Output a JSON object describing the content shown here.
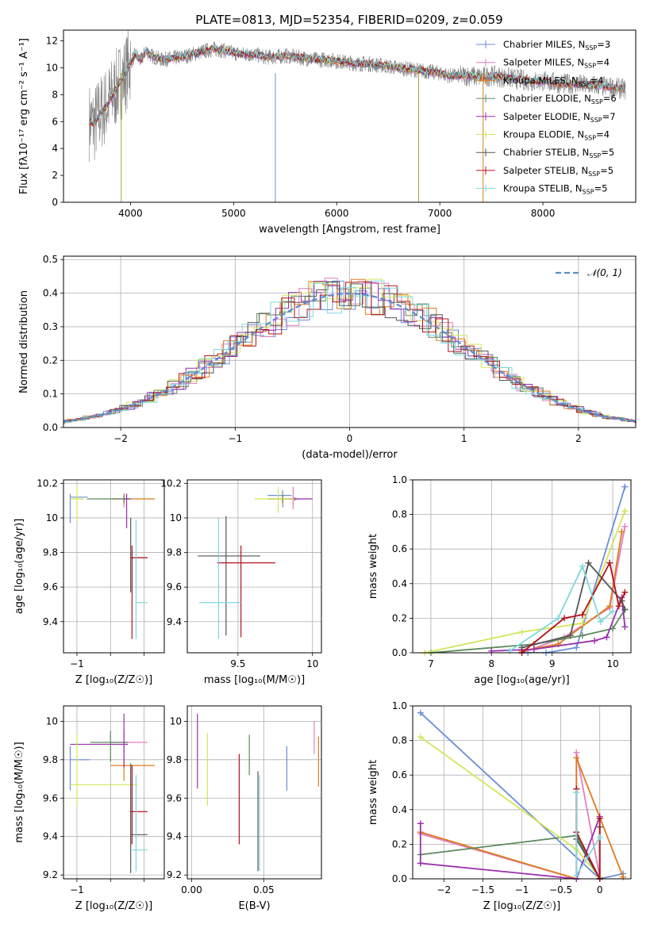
{
  "colors": [
    "#6a8fd8",
    "#e17fc0",
    "#e07b1a",
    "#5d8a5e",
    "#9b2fae",
    "#d4e55a",
    "#555555",
    "#b5121b",
    "#7fd8de"
  ],
  "chart_data": [
    {
      "id": "spectrum",
      "type": "line",
      "title": "PLATE=0813, MJD=52354, FIBERID=0209, z=0.059",
      "xlabel": "wavelength [Angstrom, rest frame]",
      "ylabel": "Flux [fλ10⁻¹⁷ erg cm⁻² s⁻¹ A⁻¹]",
      "xlim": [
        3350,
        8900
      ],
      "ylim": [
        0,
        12.8
      ],
      "xticks": [
        4000,
        5000,
        6000,
        7000,
        8000
      ],
      "yticks": [
        0,
        2,
        4,
        6,
        8,
        10,
        12
      ],
      "data_color": "#808080",
      "spectrum": {
        "x": [
          3600,
          3650,
          3700,
          3750,
          3800,
          3850,
          3900,
          3950,
          4000,
          4050,
          4100,
          4150,
          4200,
          4300,
          4400,
          4500,
          4600,
          4700,
          4800,
          4900,
          5000,
          5100,
          5200,
          5300,
          5400,
          5500,
          5600,
          5700,
          5800,
          5900,
          6000,
          6100,
          6200,
          6300,
          6400,
          6500,
          6600,
          6700,
          6800,
          6900,
          7000,
          7100,
          7200,
          7300,
          7400,
          7500,
          7600,
          7700,
          7800,
          7900,
          8000,
          8100,
          8200,
          8300,
          8400,
          8500,
          8600,
          8700,
          8800
        ],
        "y": [
          6.0,
          5.8,
          6.6,
          7.0,
          7.6,
          8.3,
          9.0,
          9.5,
          10.4,
          11.0,
          10.5,
          11.3,
          10.9,
          10.6,
          10.7,
          10.8,
          11.0,
          11.2,
          11.4,
          11.3,
          11.1,
          11.0,
          11.0,
          10.8,
          10.8,
          10.9,
          10.8,
          10.7,
          10.6,
          10.6,
          10.5,
          10.4,
          10.3,
          10.3,
          10.2,
          10.1,
          10.0,
          9.9,
          9.8,
          9.7,
          9.6,
          9.4,
          9.4,
          9.4,
          9.3,
          9.4,
          9.3,
          9.2,
          9.1,
          9.0,
          9.0,
          8.9,
          8.8,
          8.8,
          8.7,
          8.7,
          8.6,
          8.5,
          8.4
        ]
      },
      "legend": [
        {
          "imf": "Chabrier",
          "lib": "MILES",
          "n": "3"
        },
        {
          "imf": "Salpeter",
          "lib": "MILES",
          "n": "4"
        },
        {
          "imf": "Kroupa",
          "lib": "MILES",
          "n": "4"
        },
        {
          "imf": "Chabrier",
          "lib": "ELODIE",
          "n": "6"
        },
        {
          "imf": "Salpeter",
          "lib": "ELODIE",
          "n": "7"
        },
        {
          "imf": "Kroupa",
          "lib": "ELODIE",
          "n": "4"
        },
        {
          "imf": "Chabrier",
          "lib": "STELIB",
          "n": "5"
        },
        {
          "imf": "Salpeter",
          "lib": "STELIB",
          "n": "5"
        },
        {
          "imf": "Kroupa",
          "lib": "STELIB",
          "n": "5"
        }
      ],
      "legend_sub": "SSP",
      "legend_placement": "top-right"
    },
    {
      "id": "residuals",
      "type": "histogram",
      "xlabel": "(data-model)/error",
      "ylabel": "Normed distribution",
      "xlim": [
        -2.5,
        2.5
      ],
      "ylim": [
        0,
        0.51
      ],
      "xticks": [
        -2,
        -1,
        0,
        1,
        2
      ],
      "yticks": [
        0.0,
        0.1,
        0.2,
        0.3,
        0.4,
        0.5
      ],
      "grid": true,
      "gaussian_label": "𝒩(0, 1)",
      "legend_placement": "top-right"
    },
    {
      "id": "age_vs_Z",
      "type": "errorbar",
      "xlabel": "Z [log₁₀(Z/Z☉)]",
      "ylabel": "age  [log₁₀(age/yr)]",
      "xlim": [
        -1.2,
        0.3
      ],
      "ylim": [
        9.22,
        10.22
      ],
      "xticks": [
        -1,
        -0.5,
        0
      ],
      "xtick_labels": [
        "−1",
        "",
        ""
      ],
      "yticks": [
        9.4,
        9.6,
        9.8,
        10.0,
        10.2
      ],
      "points": [
        {
          "c": 0,
          "x": -1.1,
          "y": 10.12,
          "xe": [
            -1.1,
            -0.84
          ],
          "ye": [
            9.97,
            10.14
          ]
        },
        {
          "c": 1,
          "x": -0.3,
          "y": 10.11,
          "xe": [
            -0.48,
            -0.26
          ],
          "ye": [
            10.06,
            10.14
          ]
        },
        {
          "c": 2,
          "x": -0.3,
          "y": 10.11,
          "xe": [
            -0.48,
            0.16
          ],
          "ye": [
            10.08,
            10.14
          ]
        },
        {
          "c": 3,
          "x": -0.3,
          "y": 10.11,
          "xe": [
            -0.85,
            -0.18
          ],
          "ye": [
            10.09,
            10.13
          ]
        },
        {
          "c": 4,
          "x": -0.26,
          "y": 10.11,
          "xe": [
            -0.3,
            -0.22
          ],
          "ye": [
            9.94,
            10.14
          ]
        },
        {
          "c": 5,
          "x": -1.0,
          "y": 10.11,
          "xe": [
            -1.1,
            -0.9
          ],
          "ye": [
            9.98,
            10.19
          ]
        },
        {
          "c": 6,
          "x": -0.2,
          "y": 9.77,
          "xe": [
            -0.2,
            0.05
          ],
          "ye": [
            9.57,
            10.0
          ]
        },
        {
          "c": 7,
          "x": -0.18,
          "y": 9.77,
          "xe": [
            -0.2,
            0.05
          ],
          "ye": [
            9.3,
            9.84
          ]
        },
        {
          "c": 8,
          "x": -0.12,
          "y": 9.51,
          "xe": [
            -0.12,
            0.05
          ],
          "ye": [
            9.3,
            9.99
          ]
        }
      ]
    },
    {
      "id": "age_vs_mass",
      "type": "errorbar",
      "xlabel": "mass [log₁₀(M/M☉)]",
      "ylabel": "",
      "xlim": [
        9.16,
        10.06
      ],
      "ylim": [
        9.22,
        10.22
      ],
      "xticks": [
        9.5,
        10.0
      ],
      "yticks": [
        9.4,
        9.6,
        9.8,
        10.0,
        10.2
      ],
      "points": [
        {
          "c": 0,
          "x": 9.8,
          "y": 10.13,
          "xe": [
            9.7,
            9.86
          ],
          "ye": [
            10.06,
            10.16
          ]
        },
        {
          "c": 1,
          "x": 9.87,
          "y": 10.11,
          "xe": [
            9.84,
            9.92
          ],
          "ye": [
            10.05,
            10.18
          ]
        },
        {
          "c": 2,
          "x": 9.8,
          "y": 10.11,
          "xe": [
            9.7,
            9.9
          ],
          "ye": [
            10.08,
            10.14
          ]
        },
        {
          "c": 3,
          "x": 9.8,
          "y": 10.11,
          "xe": [
            9.7,
            9.9
          ],
          "ye": [
            10.09,
            10.13
          ]
        },
        {
          "c": 4,
          "x": 9.88,
          "y": 10.11,
          "xe": [
            9.84,
            10.0
          ],
          "ye": [
            10.1,
            10.12
          ]
        },
        {
          "c": 5,
          "x": 9.77,
          "y": 10.11,
          "xe": [
            9.61,
            9.88
          ],
          "ye": [
            10.03,
            10.18
          ]
        },
        {
          "c": 6,
          "x": 9.42,
          "y": 9.78,
          "xe": [
            9.23,
            9.65
          ],
          "ye": [
            9.32,
            10.01
          ]
        },
        {
          "c": 7,
          "x": 9.52,
          "y": 9.74,
          "xe": [
            9.36,
            9.75
          ],
          "ye": [
            9.31,
            9.84
          ]
        },
        {
          "c": 8,
          "x": 9.37,
          "y": 9.51,
          "xe": [
            9.24,
            9.52
          ],
          "ye": [
            9.3,
            10.0
          ]
        }
      ]
    },
    {
      "id": "mw_vs_age",
      "type": "line",
      "xlabel": "age  [log₁₀(age/yr)]",
      "ylabel": "mass weight",
      "xlim": [
        6.7,
        10.3
      ],
      "ylim": [
        0,
        1.0
      ],
      "xticks": [
        7,
        8,
        9,
        10
      ],
      "yticks": [
        0.0,
        0.2,
        0.4,
        0.6,
        0.8,
        1.0
      ],
      "grid": true,
      "series": [
        {
          "c": 0,
          "x": [
            8.6,
            8.9,
            9.4,
            10.2
          ],
          "y": [
            0.0,
            0.0,
            0.03,
            0.96
          ]
        },
        {
          "c": 1,
          "x": [
            8.5,
            9.2,
            9.95,
            10.2
          ],
          "y": [
            0.0,
            0.09,
            0.26,
            0.73
          ]
        },
        {
          "c": 2,
          "x": [
            8.5,
            9.1,
            9.95,
            10.15
          ],
          "y": [
            0.01,
            0.05,
            0.27,
            0.7
          ]
        },
        {
          "c": 3,
          "x": [
            7.0,
            8.7,
            9.5,
            10.0,
            10.2
          ],
          "y": [
            0.0,
            0.05,
            0.1,
            0.14,
            0.25
          ]
        },
        {
          "c": 4,
          "x": [
            8.0,
            8.7,
            9.7,
            9.9,
            10.15,
            10.2
          ],
          "y": [
            0.01,
            0.02,
            0.07,
            0.09,
            0.32,
            0.15
          ]
        },
        {
          "c": 5,
          "x": [
            6.9,
            8.5,
            9.5,
            10.2
          ],
          "y": [
            0.0,
            0.12,
            0.17,
            0.82
          ]
        },
        {
          "c": 6,
          "x": [
            8.5,
            9.3,
            9.6,
            10.15,
            10.2
          ],
          "y": [
            0.03,
            0.1,
            0.52,
            0.3,
            0.25
          ]
        },
        {
          "c": 7,
          "x": [
            8.5,
            9.2,
            9.5,
            9.95,
            10.1,
            10.2
          ],
          "y": [
            0.0,
            0.2,
            0.22,
            0.52,
            0.27,
            0.35
          ]
        },
        {
          "c": 8,
          "x": [
            8.3,
            9.1,
            9.5,
            9.8,
            10.0
          ],
          "y": [
            0.01,
            0.2,
            0.5,
            0.18,
            0.24
          ]
        }
      ]
    },
    {
      "id": "mass_vs_Z",
      "type": "errorbar",
      "xlabel": "Z [log₁₀(Z/Z☉)]",
      "ylabel": "mass [log₁₀(M/M☉)]",
      "xlim": [
        -1.2,
        0.3
      ],
      "ylim": [
        9.18,
        10.08
      ],
      "xticks": [
        -1,
        -0.5,
        0
      ],
      "xtick_labels": [
        "−1",
        "",
        ""
      ],
      "yticks": [
        9.2,
        9.4,
        9.6,
        9.8,
        10.0
      ],
      "points": [
        {
          "c": 0,
          "x": -1.1,
          "y": 9.8,
          "xe": [
            -1.1,
            -0.8
          ],
          "ye": [
            9.64,
            9.87
          ]
        },
        {
          "c": 1,
          "x": -0.3,
          "y": 9.89,
          "xe": [
            -0.5,
            0.05
          ],
          "ye": [
            9.83,
            9.95
          ]
        },
        {
          "c": 2,
          "x": -0.3,
          "y": 9.77,
          "xe": [
            -0.5,
            0.16
          ],
          "ye": [
            9.69,
            9.82
          ]
        },
        {
          "c": 3,
          "x": -0.5,
          "y": 9.89,
          "xe": [
            -0.8,
            -0.24
          ],
          "ye": [
            9.79,
            9.95
          ]
        },
        {
          "c": 4,
          "x": -0.3,
          "y": 9.88,
          "xe": [
            -1.1,
            -0.24
          ],
          "ye": [
            9.76,
            10.04
          ]
        },
        {
          "c": 5,
          "x": -1.0,
          "y": 9.67,
          "xe": [
            -1.1,
            -0.1
          ],
          "ye": [
            9.56,
            9.94
          ]
        },
        {
          "c": 6,
          "x": -0.2,
          "y": 9.41,
          "xe": [
            -0.2,
            0.05
          ],
          "ye": [
            9.21,
            9.78
          ]
        },
        {
          "c": 7,
          "x": -0.18,
          "y": 9.53,
          "xe": [
            -0.2,
            0.05
          ],
          "ye": [
            9.36,
            9.77
          ]
        },
        {
          "c": 8,
          "x": -0.12,
          "y": 9.33,
          "xe": [
            -0.18,
            0.05
          ],
          "ye": [
            9.22,
            9.72
          ]
        }
      ]
    },
    {
      "id": "mass_vs_ebv",
      "type": "errorbar",
      "xlabel": "E(B-V)",
      "ylabel": "",
      "xlim": [
        -0.003,
        0.09
      ],
      "ylim": [
        9.18,
        10.08
      ],
      "xticks": [
        0.0,
        0.05
      ],
      "xtick_labels": [
        "0.00",
        "0.05"
      ],
      "yticks": [
        9.2,
        9.4,
        9.6,
        9.8,
        10.0
      ],
      "points": [
        {
          "c": 0,
          "x": 0.066,
          "ye": [
            9.64,
            9.87
          ]
        },
        {
          "c": 1,
          "x": 0.085,
          "ye": [
            9.83,
            10.0
          ]
        },
        {
          "c": 2,
          "x": 0.088,
          "ye": [
            9.66,
            9.92
          ]
        },
        {
          "c": 3,
          "x": 0.04,
          "ye": [
            9.72,
            9.93
          ]
        },
        {
          "c": 4,
          "x": 0.004,
          "ye": [
            9.65,
            10.04
          ]
        },
        {
          "c": 5,
          "x": 0.011,
          "ye": [
            9.56,
            9.94
          ]
        },
        {
          "c": 6,
          "x": 0.046,
          "ye": [
            9.22,
            9.74
          ]
        },
        {
          "c": 7,
          "x": 0.033,
          "ye": [
            9.36,
            9.83
          ]
        },
        {
          "c": 8,
          "x": 0.047,
          "ye": [
            9.22,
            9.72
          ]
        }
      ]
    },
    {
      "id": "mw_vs_Z",
      "type": "line",
      "xlabel": "Z [log₁₀(Z/Z☉)]",
      "ylabel": "mass weight",
      "xlim": [
        -2.4,
        0.4
      ],
      "ylim": [
        0,
        1.0
      ],
      "xticks": [
        -2.0,
        -1.5,
        -1.0,
        -0.5,
        0.0
      ],
      "yticks": [
        0.0,
        0.2,
        0.4,
        0.6,
        0.8,
        1.0
      ],
      "grid": true,
      "series": [
        {
          "c": 0,
          "x": [
            -2.3,
            0.0,
            0.3
          ],
          "y": [
            0.96,
            0.0,
            0.03
          ]
        },
        {
          "c": 1,
          "x": [
            -2.3,
            -0.3,
            -0.3,
            0.0
          ],
          "y": [
            0.26,
            0.0,
            0.73,
            0.01
          ]
        },
        {
          "c": 2,
          "x": [
            -2.3,
            -0.3,
            -0.3,
            0.3
          ],
          "y": [
            0.27,
            0.0,
            0.7,
            0.01
          ]
        },
        {
          "c": 3,
          "x": [
            -2.3,
            -0.3,
            0.0
          ],
          "y": [
            0.14,
            0.25,
            0.0
          ]
        },
        {
          "c": 4,
          "x": [
            -2.3,
            -2.3,
            -0.3,
            0.0,
            0.0
          ],
          "y": [
            0.32,
            0.09,
            0.0,
            0.36,
            0.0
          ]
        },
        {
          "c": 5,
          "x": [
            -2.3,
            -0.3,
            0.0
          ],
          "y": [
            0.82,
            0.17,
            0.01
          ]
        },
        {
          "c": 6,
          "x": [
            -0.3,
            0.0,
            0.0
          ],
          "y": [
            0.23,
            0.0,
            0.3
          ]
        },
        {
          "c": 7,
          "x": [
            -0.3,
            -0.3,
            0.0,
            0.0
          ],
          "y": [
            0.52,
            0.27,
            0.0,
            0.35
          ]
        },
        {
          "c": 8,
          "x": [
            -0.3,
            -0.3,
            0.0
          ],
          "y": [
            0.5,
            0.02,
            0.24
          ]
        }
      ]
    }
  ]
}
